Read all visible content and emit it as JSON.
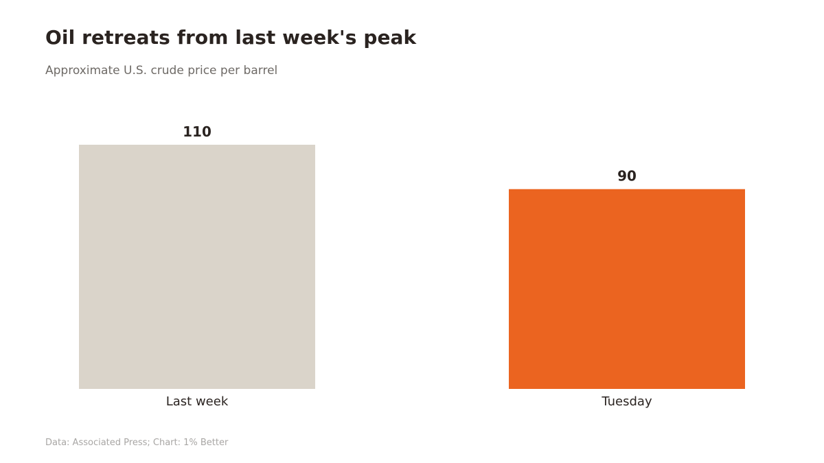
{
  "header": {
    "title": "Oil retreats from last week's peak",
    "subtitle": "Approximate U.S. crude price per barrel"
  },
  "footer": {
    "source": "Data: Associated Press; Chart: 1% Better"
  },
  "colors": {
    "background": "#ffffff",
    "bar_last_week": "#dad4ca",
    "bar_tuesday": "#eb6420",
    "label_text": "#2a2320"
  },
  "chart_data": {
    "type": "bar",
    "categories": [
      "Last week",
      "Tuesday"
    ],
    "values": [
      110,
      90
    ],
    "data_labels": [
      "110",
      "90"
    ],
    "title": "Oil retreats from last week's peak",
    "subtitle": "Approximate U.S. crude price per barrel",
    "ylim": [
      0,
      110
    ],
    "grid": false,
    "legend": "none"
  }
}
